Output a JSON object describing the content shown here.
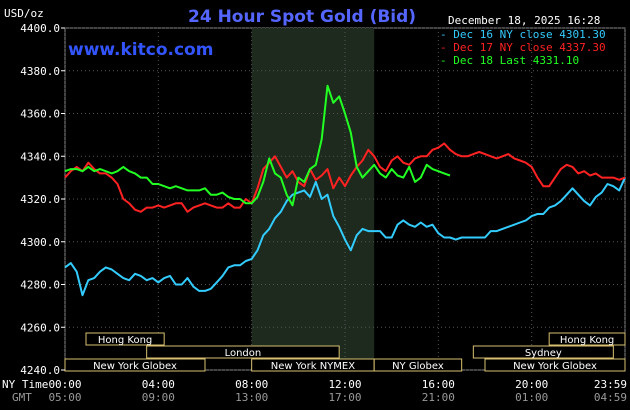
{
  "header": {
    "units": "USD/oz",
    "title": "24 Hour Spot Gold (Bid)",
    "brand": "www.kitco.com",
    "timestamp": "December 18, 2025 16:28"
  },
  "legend": [
    {
      "prefix": "- ",
      "text": "Dec 16 NY close 4301.30",
      "color": "#33ccff"
    },
    {
      "prefix": "- ",
      "text": "Dec 17 NY close 4337.30",
      "color": "#ff2222"
    },
    {
      "prefix": "- ",
      "text": "Dec 18 Last 4331.10",
      "color": "#22ff22"
    }
  ],
  "axis_labels": {
    "row1": "NY Time",
    "row2": "GMT"
  },
  "sessions": [
    {
      "name": "Hong Kong",
      "row": 0,
      "start": 0.9,
      "end": 4.25
    },
    {
      "name": "Hong Kong",
      "row": 0,
      "start": 20.75,
      "end": 24.0
    },
    {
      "name": "London",
      "row": 1,
      "start": 3.5,
      "end": 11.75
    },
    {
      "name": "Sydney",
      "row": 1,
      "start": 17.5,
      "end": 23.5
    },
    {
      "name": "New York Globex",
      "row": 2,
      "start": 0.0,
      "end": 6.0
    },
    {
      "name": "New York NYMEX",
      "row": 2,
      "start": 8.0,
      "end": 13.25
    },
    {
      "name": "NY Globex",
      "row": 2,
      "start": 13.25,
      "end": 17.0
    },
    {
      "name": "New York Globex",
      "row": 2,
      "start": 18.0,
      "end": 24.0
    }
  ],
  "chart_data": {
    "type": "line",
    "title": "24 Hour Spot Gold (Bid)",
    "ylabel": "USD/oz",
    "ylim": [
      4240,
      4400
    ],
    "yticks": [
      "4400.0",
      "4380.0",
      "4360.0",
      "4340.0",
      "4320.0",
      "4300.0",
      "4280.0",
      "4260.0",
      "4240.0"
    ],
    "ytick_values": [
      4400,
      4380,
      4360,
      4340,
      4320,
      4300,
      4280,
      4260,
      4240
    ],
    "xlim": [
      0,
      24
    ],
    "xticks_ny": [
      "00:00",
      "04:00",
      "08:00",
      "12:00",
      "16:00",
      "20:00",
      "23:59"
    ],
    "xticks_gmt": [
      "05:00",
      "09:00",
      "13:00",
      "17:00",
      "21:00",
      "01:00",
      "04:59"
    ],
    "xtick_values": [
      0,
      4,
      8,
      12,
      16,
      20,
      24
    ],
    "highlight_x": [
      8.0,
      13.25
    ],
    "grid": true,
    "series": [
      {
        "name": "Dec 16 NY close 4301.30",
        "color": "#33ccff",
        "x": [
          0,
          0.25,
          0.5,
          0.75,
          1.0,
          1.25,
          1.5,
          1.75,
          2.0,
          2.25,
          2.5,
          2.75,
          3.0,
          3.25,
          3.5,
          3.75,
          4.0,
          4.25,
          4.5,
          4.75,
          5.0,
          5.25,
          5.5,
          5.75,
          6.0,
          6.25,
          6.5,
          6.75,
          7.0,
          7.25,
          7.5,
          7.75,
          8.0,
          8.25,
          8.5,
          8.75,
          9.0,
          9.25,
          9.5,
          9.75,
          10.0,
          10.25,
          10.5,
          10.75,
          11.0,
          11.25,
          11.5,
          11.75,
          12.0,
          12.25,
          12.5,
          12.75,
          13.0,
          13.25,
          13.5,
          13.75,
          14.0,
          14.25,
          14.5,
          14.75,
          15.0,
          15.25,
          15.5,
          15.75,
          16.0,
          16.25,
          16.5,
          16.75,
          17.0,
          17.25,
          17.5,
          17.75,
          18.0,
          18.25,
          18.5,
          18.75,
          19.0,
          19.25,
          19.5,
          19.75,
          20.0,
          20.25,
          20.5,
          20.75,
          21.0,
          21.25,
          21.5,
          21.75,
          22.0,
          22.25,
          22.5,
          22.75,
          23.0,
          23.25,
          23.5,
          23.75,
          24.0
        ],
        "values": [
          4288,
          4290,
          4286,
          4275,
          4282,
          4283,
          4286,
          4288,
          4287,
          4285,
          4283,
          4282,
          4285,
          4284,
          4282,
          4283,
          4281,
          4283,
          4284,
          4280,
          4280,
          4283,
          4279,
          4277,
          4277,
          4278,
          4281,
          4284,
          4288,
          4289,
          4289,
          4291,
          4292,
          4296,
          4303,
          4306,
          4311,
          4314,
          4319,
          4322,
          4323,
          4324,
          4321,
          4328,
          4320,
          4322,
          4312,
          4307,
          4301,
          4296,
          4303,
          4306,
          4305,
          4305,
          4305,
          4302,
          4302,
          4308,
          4310,
          4308,
          4307,
          4309,
          4307,
          4308,
          4304,
          4302,
          4302,
          4301,
          4302,
          4302,
          4302,
          4302,
          4302,
          4305,
          4305,
          4306,
          4307,
          4308,
          4309,
          4310,
          4312,
          4313,
          4313,
          4316,
          4317,
          4319,
          4322,
          4325,
          4322,
          4319,
          4317,
          4321,
          4323,
          4327,
          4326,
          4324,
          4330
        ]
      },
      {
        "name": "Dec 17 NY close 4337.30",
        "color": "#ff2222",
        "x": [
          0,
          0.25,
          0.5,
          0.75,
          1.0,
          1.25,
          1.5,
          1.75,
          2.0,
          2.25,
          2.5,
          2.75,
          3.0,
          3.25,
          3.5,
          3.75,
          4.0,
          4.25,
          4.5,
          4.75,
          5.0,
          5.25,
          5.5,
          5.75,
          6.0,
          6.25,
          6.5,
          6.75,
          7.0,
          7.25,
          7.5,
          7.75,
          8.0,
          8.25,
          8.5,
          8.75,
          9.0,
          9.25,
          9.5,
          9.75,
          10.0,
          10.25,
          10.5,
          10.75,
          11.0,
          11.25,
          11.5,
          11.75,
          12.0,
          12.25,
          12.5,
          12.75,
          13.0,
          13.25,
          13.5,
          13.75,
          14.0,
          14.25,
          14.5,
          14.75,
          15.0,
          15.25,
          15.5,
          15.75,
          16.0,
          16.25,
          16.5,
          16.75,
          17.0,
          17.25,
          17.5,
          17.75,
          18.0,
          18.25,
          18.5,
          18.75,
          19.0,
          19.25,
          19.5,
          19.75,
          20.0,
          20.25,
          20.5,
          20.75,
          21.0,
          21.25,
          21.5,
          21.75,
          22.0,
          22.25,
          22.5,
          22.75,
          23.0,
          23.25,
          23.5,
          23.75,
          24.0
        ],
        "values": [
          4330,
          4333,
          4335,
          4333,
          4337,
          4334,
          4332,
          4332,
          4330,
          4327,
          4320,
          4318,
          4315,
          4314,
          4316,
          4316,
          4317,
          4316,
          4317,
          4318,
          4318,
          4314,
          4316,
          4317,
          4318,
          4317,
          4316,
          4316,
          4318,
          4316,
          4316,
          4320,
          4318,
          4325,
          4334,
          4337,
          4340,
          4335,
          4330,
          4333,
          4328,
          4326,
          4334,
          4329,
          4331,
          4334,
          4325,
          4330,
          4326,
          4331,
          4335,
          4338,
          4343,
          4340,
          4335,
          4333,
          4338,
          4340,
          4337,
          4336,
          4339,
          4340,
          4340,
          4343,
          4344,
          4346,
          4343,
          4341,
          4340,
          4340,
          4341,
          4342,
          4341,
          4340,
          4339,
          4340,
          4341,
          4339,
          4338,
          4337,
          4335,
          4330,
          4326,
          4326,
          4330,
          4334,
          4336,
          4335,
          4332,
          4333,
          4331,
          4332,
          4330,
          4330,
          4330,
          4329,
          4330
        ]
      },
      {
        "name": "Dec 18 Last 4331.10",
        "color": "#22ff22",
        "x": [
          0,
          0.25,
          0.5,
          0.75,
          1.0,
          1.25,
          1.5,
          1.75,
          2.0,
          2.25,
          2.5,
          2.75,
          3.0,
          3.25,
          3.5,
          3.75,
          4.0,
          4.25,
          4.5,
          4.75,
          5.0,
          5.25,
          5.5,
          5.75,
          6.0,
          6.25,
          6.5,
          6.75,
          7.0,
          7.25,
          7.5,
          7.75,
          8.0,
          8.25,
          8.5,
          8.75,
          9.0,
          9.25,
          9.5,
          9.75,
          10.0,
          10.25,
          10.5,
          10.75,
          11.0,
          11.25,
          11.5,
          11.75,
          12.0,
          12.25,
          12.5,
          12.75,
          13.0,
          13.25,
          13.5,
          13.75,
          14.0,
          14.25,
          14.5,
          14.75,
          15.0,
          15.25,
          15.5,
          15.75,
          16.0,
          16.25,
          16.5
        ],
        "values": [
          4333,
          4334,
          4334,
          4333,
          4335,
          4333,
          4334,
          4333,
          4332,
          4333,
          4335,
          4333,
          4332,
          4330,
          4330,
          4327,
          4327,
          4326,
          4325,
          4326,
          4325,
          4324,
          4324,
          4324,
          4325,
          4322,
          4322,
          4323,
          4321,
          4320,
          4320,
          4318,
          4318,
          4321,
          4328,
          4339,
          4332,
          4330,
          4322,
          4317,
          4330,
          4328,
          4334,
          4336,
          4348,
          4373,
          4365,
          4368,
          4360,
          4351,
          4335,
          4330,
          4333,
          4336,
          4332,
          4330,
          4334,
          4331,
          4330,
          4335,
          4328,
          4330,
          4336,
          4334,
          4333,
          4332,
          4331
        ]
      }
    ]
  }
}
